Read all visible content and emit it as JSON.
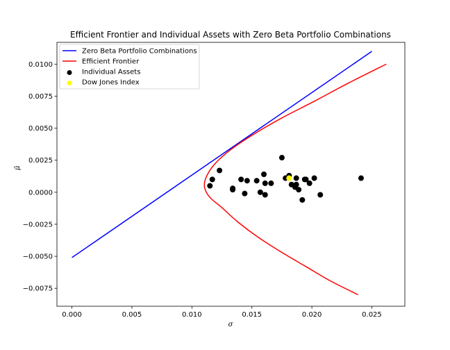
{
  "chart_data": {
    "type": "line",
    "title": "Efficient Frontier and Individual Assets with Zero Beta Portfolio Combinations",
    "xlabel": "σ",
    "ylabel": "μ̄",
    "xlim": [
      -0.00125,
      0.02775
    ],
    "ylim": [
      -0.0089,
      0.0117
    ],
    "x_ticks": [
      {
        "value": 0.0,
        "label": "0.000"
      },
      {
        "value": 0.005,
        "label": "0.005"
      },
      {
        "value": 0.01,
        "label": "0.010"
      },
      {
        "value": 0.015,
        "label": "0.015"
      },
      {
        "value": 0.02,
        "label": "0.020"
      },
      {
        "value": 0.025,
        "label": "0.025"
      }
    ],
    "y_ticks": [
      {
        "value": -0.0075,
        "label": "−0.0075"
      },
      {
        "value": -0.005,
        "label": "−0.0050"
      },
      {
        "value": -0.0025,
        "label": "−0.0025"
      },
      {
        "value": 0.0,
        "label": "0.0000"
      },
      {
        "value": 0.0025,
        "label": "0.0025"
      },
      {
        "value": 0.005,
        "label": "0.0050"
      },
      {
        "value": 0.0075,
        "label": "0.0075"
      },
      {
        "value": 0.01,
        "label": "0.0100"
      }
    ],
    "grid": false,
    "legend_position": "top-left",
    "legend": [
      {
        "label": "Zero Beta Portfolio Combinations",
        "marker": "line",
        "color": "#0000ff"
      },
      {
        "label": "Efficient Frontier",
        "marker": "line",
        "color": "#ff0000"
      },
      {
        "label": "Individual Assets",
        "marker": "dot",
        "color": "#000000"
      },
      {
        "label": "Dow Jones Index",
        "marker": "dot",
        "color": "#ffff00"
      }
    ],
    "series": [
      {
        "name": "Zero Beta Portfolio Combinations",
        "kind": "line",
        "color": "#0000ff",
        "points": [
          [
            0.0,
            -0.0051
          ],
          [
            0.025,
            0.011
          ]
        ]
      },
      {
        "name": "Efficient Frontier",
        "kind": "line",
        "color": "#ff0000",
        "points": [
          [
            0.02385,
            -0.008
          ],
          [
            0.0215,
            -0.0069
          ],
          [
            0.0195,
            -0.0058
          ],
          [
            0.0175,
            -0.0047
          ],
          [
            0.0155,
            -0.0035
          ],
          [
            0.0138,
            -0.0023
          ],
          [
            0.0125,
            -0.0012
          ],
          [
            0.0115,
            -0.0004
          ],
          [
            0.01105,
            0.0004
          ],
          [
            0.0112,
            0.0012
          ],
          [
            0.0119,
            0.0022
          ],
          [
            0.0132,
            0.0033
          ],
          [
            0.0151,
            0.0045
          ],
          [
            0.0175,
            0.0058
          ],
          [
            0.0202,
            0.0071
          ],
          [
            0.023,
            0.0085
          ],
          [
            0.0262,
            0.01
          ]
        ]
      },
      {
        "name": "Individual Assets",
        "kind": "scatter",
        "color": "#000000",
        "points": [
          [
            0.0115,
            0.0005
          ],
          [
            0.0117,
            0.001
          ],
          [
            0.0123,
            0.0017
          ],
          [
            0.0134,
            0.0003
          ],
          [
            0.0134,
            0.0002
          ],
          [
            0.0141,
            0.001
          ],
          [
            0.0144,
            -0.0001
          ],
          [
            0.0146,
            0.0009
          ],
          [
            0.0154,
            0.0009
          ],
          [
            0.0157,
            0.0
          ],
          [
            0.016,
            0.0014
          ],
          [
            0.0161,
            0.0007
          ],
          [
            0.0161,
            -0.0002
          ],
          [
            0.0166,
            0.0007
          ],
          [
            0.0175,
            0.0027
          ],
          [
            0.0178,
            0.0011
          ],
          [
            0.0181,
            0.0013
          ],
          [
            0.0183,
            0.0006
          ],
          [
            0.0186,
            0.0004
          ],
          [
            0.0187,
            0.0006
          ],
          [
            0.0187,
            0.0011
          ],
          [
            0.0189,
            0.0002
          ],
          [
            0.0192,
            -0.0006
          ],
          [
            0.0194,
            0.001
          ],
          [
            0.0195,
            0.001
          ],
          [
            0.0198,
            0.0007
          ],
          [
            0.0202,
            0.0011
          ],
          [
            0.0207,
            -0.0002
          ],
          [
            0.0241,
            0.0011
          ]
        ]
      },
      {
        "name": "Dow Jones Index",
        "kind": "scatter",
        "color": "#ffff00",
        "points": [
          [
            0.0181,
            0.0011
          ]
        ]
      }
    ]
  }
}
